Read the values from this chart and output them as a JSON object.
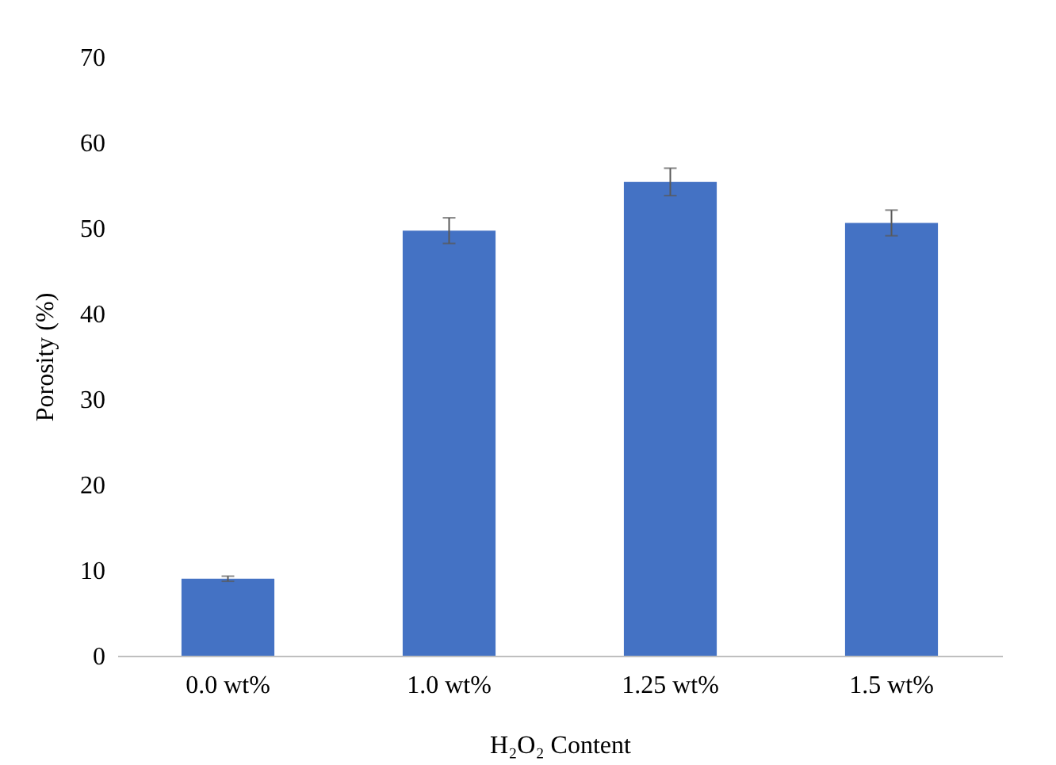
{
  "chart_data": {
    "type": "bar",
    "xlabel": "H₂O₂ Content",
    "ylabel": "Porosity (%)",
    "categories": [
      "0.0 wt%",
      "1.0 wt%",
      "1.25 wt%",
      "1.5 wt%"
    ],
    "series": [
      {
        "color": "#4472c4",
        "values": [
          9.0,
          49.7,
          55.4,
          50.6
        ],
        "errors": [
          0.3,
          1.5,
          1.6,
          1.5
        ]
      }
    ],
    "ylim": [
      0,
      70
    ],
    "yticks": [
      0,
      10,
      20,
      30,
      40,
      50,
      60,
      70
    ],
    "grid": false
  }
}
